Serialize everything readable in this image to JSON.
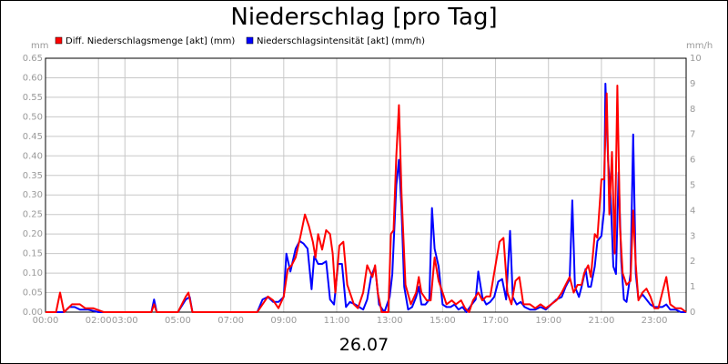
{
  "title": "Niederschlag [pro Tag]",
  "date_label": "26.07",
  "chart_data": {
    "type": "line",
    "title": "Niederschlag [pro Tag]",
    "xlabel": "26.07",
    "y_left_unit": "mm",
    "y_right_unit": "mm/h",
    "xlim": [
      0,
      24.2
    ],
    "ylim_left": [
      0,
      0.65
    ],
    "ylim_right": [
      0,
      10
    ],
    "y_left_ticks": [
      "0.00",
      "0.05",
      "0.10",
      "0.15",
      "0.20",
      "0.25",
      "0.30",
      "0.35",
      "0.40",
      "0.45",
      "0.50",
      "0.55",
      "0.60",
      "0.65"
    ],
    "y_right_ticks": [
      "0",
      "1",
      "2",
      "3",
      "4",
      "5",
      "6",
      "7",
      "8",
      "9",
      "10"
    ],
    "x_ticks": [
      {
        "h": 0,
        "label": "00:00"
      },
      {
        "h": 2,
        "label": "02:00"
      },
      {
        "h": 3,
        "label": "03:00"
      },
      {
        "h": 5,
        "label": "05:00"
      },
      {
        "h": 7,
        "label": "07:00"
      },
      {
        "h": 9,
        "label": "09:00"
      },
      {
        "h": 11,
        "label": "11:00"
      },
      {
        "h": 13,
        "label": "13:00"
      },
      {
        "h": 15,
        "label": "15:00"
      },
      {
        "h": 17,
        "label": "17:00"
      },
      {
        "h": 19,
        "label": "19:00"
      },
      {
        "h": 21,
        "label": "21:00"
      },
      {
        "h": 23,
        "label": "23:00"
      }
    ],
    "grid": true,
    "legend_position": "top-left",
    "series": [
      {
        "name": "Diff. Niederschlagsmenge [akt] (mm)",
        "axis": "left",
        "color": "#ff0000",
        "points": [
          [
            0,
            0
          ],
          [
            0.4,
            0
          ],
          [
            0.55,
            0.05
          ],
          [
            0.7,
            0
          ],
          [
            1.0,
            0.02
          ],
          [
            1.3,
            0.02
          ],
          [
            1.5,
            0.01
          ],
          [
            1.8,
            0.01
          ],
          [
            2.2,
            0
          ],
          [
            4.0,
            0
          ],
          [
            4.1,
            0.02
          ],
          [
            4.2,
            0
          ],
          [
            5.0,
            0
          ],
          [
            5.3,
            0.04
          ],
          [
            5.4,
            0.05
          ],
          [
            5.55,
            0
          ],
          [
            8.0,
            0
          ],
          [
            8.2,
            0.02
          ],
          [
            8.4,
            0.04
          ],
          [
            8.6,
            0.03
          ],
          [
            8.8,
            0.01
          ],
          [
            9.0,
            0.04
          ],
          [
            9.15,
            0.11
          ],
          [
            9.3,
            0.12
          ],
          [
            9.45,
            0.14
          ],
          [
            9.65,
            0.2
          ],
          [
            9.8,
            0.25
          ],
          [
            9.95,
            0.22
          ],
          [
            10.1,
            0.18
          ],
          [
            10.2,
            0.14
          ],
          [
            10.3,
            0.2
          ],
          [
            10.45,
            0.16
          ],
          [
            10.6,
            0.21
          ],
          [
            10.75,
            0.2
          ],
          [
            10.85,
            0.15
          ],
          [
            10.95,
            0.05
          ],
          [
            11.1,
            0.17
          ],
          [
            11.25,
            0.18
          ],
          [
            11.4,
            0.07
          ],
          [
            11.5,
            0.05
          ],
          [
            11.65,
            0.02
          ],
          [
            11.8,
            0.01
          ],
          [
            12.0,
            0.05
          ],
          [
            12.15,
            0.12
          ],
          [
            12.35,
            0.09
          ],
          [
            12.45,
            0.12
          ],
          [
            12.55,
            0.05
          ],
          [
            12.7,
            0
          ],
          [
            12.95,
            0
          ],
          [
            13.05,
            0.2
          ],
          [
            13.15,
            0.21
          ],
          [
            13.25,
            0.4
          ],
          [
            13.35,
            0.53
          ],
          [
            13.45,
            0.3
          ],
          [
            13.6,
            0.07
          ],
          [
            13.8,
            0.02
          ],
          [
            14.0,
            0.05
          ],
          [
            14.1,
            0.09
          ],
          [
            14.2,
            0.05
          ],
          [
            14.4,
            0.03
          ],
          [
            14.55,
            0.03
          ],
          [
            14.7,
            0.14
          ],
          [
            14.85,
            0.08
          ],
          [
            15.0,
            0.05
          ],
          [
            15.15,
            0.02
          ],
          [
            15.35,
            0.03
          ],
          [
            15.5,
            0.02
          ],
          [
            15.7,
            0.03
          ],
          [
            15.85,
            0.01
          ],
          [
            16.0,
            0
          ],
          [
            16.15,
            0.03
          ],
          [
            16.35,
            0.05
          ],
          [
            16.5,
            0.03
          ],
          [
            16.65,
            0.04
          ],
          [
            16.8,
            0.04
          ],
          [
            17.0,
            0.12
          ],
          [
            17.15,
            0.18
          ],
          [
            17.3,
            0.19
          ],
          [
            17.45,
            0.05
          ],
          [
            17.6,
            0.02
          ],
          [
            17.75,
            0.08
          ],
          [
            17.9,
            0.09
          ],
          [
            18.05,
            0.02
          ],
          [
            18.3,
            0.02
          ],
          [
            18.5,
            0.01
          ],
          [
            18.7,
            0.02
          ],
          [
            18.9,
            0.01
          ],
          [
            19.1,
            0.02
          ],
          [
            19.3,
            0.03
          ],
          [
            19.5,
            0.05
          ],
          [
            19.65,
            0.07
          ],
          [
            19.8,
            0.09
          ],
          [
            19.95,
            0.05
          ],
          [
            20.1,
            0.07
          ],
          [
            20.25,
            0.07
          ],
          [
            20.35,
            0.1
          ],
          [
            20.5,
            0.12
          ],
          [
            20.6,
            0.09
          ],
          [
            20.75,
            0.2
          ],
          [
            20.85,
            0.19
          ],
          [
            21.0,
            0.34
          ],
          [
            21.1,
            0.34
          ],
          [
            21.2,
            0.56
          ],
          [
            21.3,
            0.25
          ],
          [
            21.4,
            0.41
          ],
          [
            21.5,
            0.15
          ],
          [
            21.6,
            0.58
          ],
          [
            21.7,
            0.22
          ],
          [
            21.8,
            0.1
          ],
          [
            21.95,
            0.07
          ],
          [
            22.1,
            0.08
          ],
          [
            22.2,
            0.26
          ],
          [
            22.3,
            0.12
          ],
          [
            22.4,
            0.03
          ],
          [
            22.55,
            0.05
          ],
          [
            22.7,
            0.06
          ],
          [
            22.85,
            0.04
          ],
          [
            23.0,
            0.01
          ],
          [
            23.15,
            0.01
          ],
          [
            23.3,
            0.05
          ],
          [
            23.45,
            0.09
          ],
          [
            23.6,
            0.02
          ],
          [
            23.8,
            0.01
          ],
          [
            24.0,
            0.01
          ],
          [
            24.2,
            0
          ]
        ]
      },
      {
        "name": "Niederschlagsintensität [akt] (mm/h)",
        "axis": "right",
        "color": "#0000ff",
        "points": [
          [
            0,
            0
          ],
          [
            0.7,
            0
          ],
          [
            0.9,
            0.2
          ],
          [
            1.1,
            0.2
          ],
          [
            1.3,
            0.1
          ],
          [
            1.6,
            0.1
          ],
          [
            2.0,
            0
          ],
          [
            4.0,
            0
          ],
          [
            4.1,
            0.5
          ],
          [
            4.2,
            0
          ],
          [
            5.0,
            0
          ],
          [
            5.3,
            0.5
          ],
          [
            5.45,
            0.6
          ],
          [
            5.55,
            0
          ],
          [
            8.0,
            0
          ],
          [
            8.2,
            0.5
          ],
          [
            8.4,
            0.6
          ],
          [
            8.6,
            0.4
          ],
          [
            8.8,
            0.4
          ],
          [
            9.0,
            0.6
          ],
          [
            9.1,
            2.3
          ],
          [
            9.25,
            1.6
          ],
          [
            9.45,
            2.5
          ],
          [
            9.6,
            2.8
          ],
          [
            9.75,
            2.7
          ],
          [
            9.9,
            2.5
          ],
          [
            10.05,
            0.9
          ],
          [
            10.15,
            2.2
          ],
          [
            10.3,
            1.9
          ],
          [
            10.45,
            1.9
          ],
          [
            10.6,
            2.0
          ],
          [
            10.75,
            0.5
          ],
          [
            10.9,
            0.3
          ],
          [
            11.05,
            1.9
          ],
          [
            11.2,
            1.9
          ],
          [
            11.35,
            0.2
          ],
          [
            11.5,
            0.4
          ],
          [
            11.7,
            0.3
          ],
          [
            11.85,
            0.2
          ],
          [
            12.0,
            0.1
          ],
          [
            12.15,
            0.5
          ],
          [
            12.3,
            1.4
          ],
          [
            12.45,
            1.8
          ],
          [
            12.6,
            0.3
          ],
          [
            12.8,
            0
          ],
          [
            13.0,
            0.6
          ],
          [
            13.1,
            1.5
          ],
          [
            13.25,
            5.0
          ],
          [
            13.35,
            6.0
          ],
          [
            13.45,
            4.0
          ],
          [
            13.55,
            1.0
          ],
          [
            13.7,
            0.1
          ],
          [
            13.85,
            0.2
          ],
          [
            14.0,
            0.6
          ],
          [
            14.1,
            1.0
          ],
          [
            14.2,
            0.3
          ],
          [
            14.35,
            0.3
          ],
          [
            14.5,
            0.5
          ],
          [
            14.6,
            4.1
          ],
          [
            14.7,
            2.5
          ],
          [
            14.85,
            1.8
          ],
          [
            15.0,
            0.3
          ],
          [
            15.15,
            0.2
          ],
          [
            15.3,
            0.2
          ],
          [
            15.45,
            0.3
          ],
          [
            15.6,
            0.1
          ],
          [
            15.75,
            0.2
          ],
          [
            15.9,
            0
          ],
          [
            16.1,
            0.3
          ],
          [
            16.25,
            0.5
          ],
          [
            16.35,
            1.6
          ],
          [
            16.5,
            0.6
          ],
          [
            16.65,
            0.3
          ],
          [
            16.8,
            0.4
          ],
          [
            16.95,
            0.6
          ],
          [
            17.1,
            1.2
          ],
          [
            17.25,
            1.3
          ],
          [
            17.4,
            0.5
          ],
          [
            17.55,
            3.2
          ],
          [
            17.65,
            0.6
          ],
          [
            17.8,
            0.3
          ],
          [
            17.95,
            0.4
          ],
          [
            18.1,
            0.2
          ],
          [
            18.3,
            0.1
          ],
          [
            18.5,
            0.1
          ],
          [
            18.7,
            0.2
          ],
          [
            18.9,
            0.1
          ],
          [
            19.1,
            0.3
          ],
          [
            19.3,
            0.5
          ],
          [
            19.5,
            0.6
          ],
          [
            19.65,
            1.0
          ],
          [
            19.8,
            1.3
          ],
          [
            19.9,
            4.4
          ],
          [
            20.0,
            1.0
          ],
          [
            20.15,
            0.6
          ],
          [
            20.25,
            1.0
          ],
          [
            20.4,
            1.7
          ],
          [
            20.5,
            1.0
          ],
          [
            20.6,
            1.0
          ],
          [
            20.75,
            1.8
          ],
          [
            20.85,
            2.8
          ],
          [
            21.0,
            3.0
          ],
          [
            21.1,
            4.0
          ],
          [
            21.15,
            9.0
          ],
          [
            21.25,
            6.0
          ],
          [
            21.35,
            4.5
          ],
          [
            21.45,
            1.8
          ],
          [
            21.55,
            1.5
          ],
          [
            21.65,
            5.5
          ],
          [
            21.75,
            2.0
          ],
          [
            21.85,
            0.5
          ],
          [
            21.95,
            0.4
          ],
          [
            22.1,
            1.5
          ],
          [
            22.2,
            7.0
          ],
          [
            22.3,
            1.5
          ],
          [
            22.4,
            0.5
          ],
          [
            22.55,
            0.7
          ],
          [
            22.7,
            0.5
          ],
          [
            22.85,
            0.3
          ],
          [
            23.0,
            0.2
          ],
          [
            23.15,
            0.2
          ],
          [
            23.3,
            0.2
          ],
          [
            23.45,
            0.3
          ],
          [
            23.6,
            0.1
          ],
          [
            23.8,
            0.1
          ],
          [
            24.0,
            0
          ],
          [
            24.2,
            0
          ]
        ]
      }
    ]
  }
}
